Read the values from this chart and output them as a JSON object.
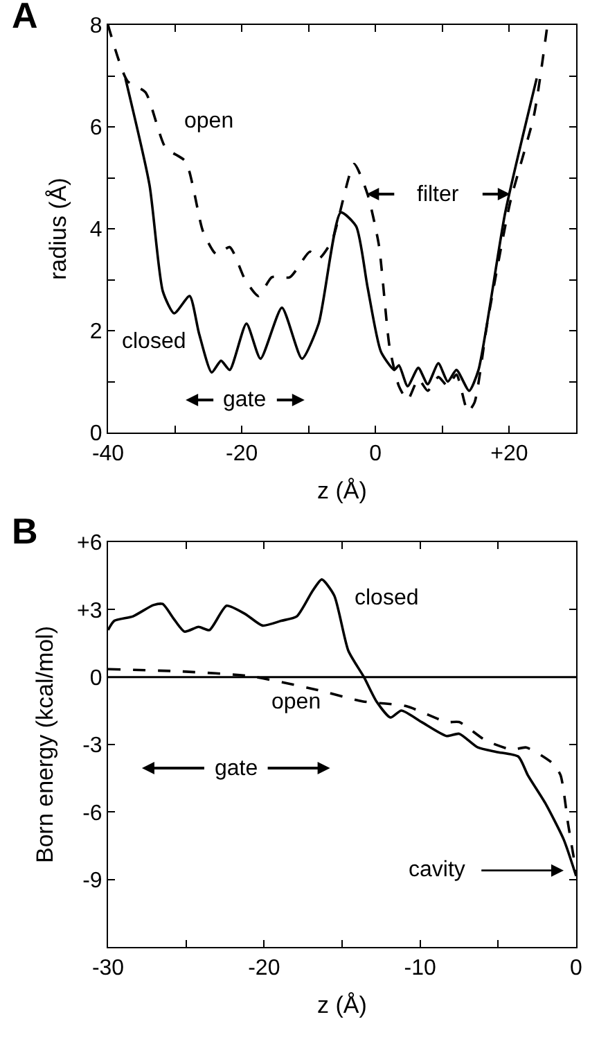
{
  "chart_data": [
    {
      "type": "line",
      "title": "A",
      "xlabel": "z (Å)",
      "ylabel": "radius (Å)",
      "xlim": [
        -40,
        30
      ],
      "xticks": [
        -40,
        {
          "value": -30,
          "label": null
        },
        -20,
        {
          "value": -10,
          "label": null
        },
        0,
        {
          "value": 10,
          "label": null
        },
        {
          "value": 20,
          "label": "+20"
        }
      ],
      "ylim": [
        0,
        8
      ],
      "yticks": [
        0,
        {
          "value": 1,
          "label": null
        },
        2,
        {
          "value": 3,
          "label": null
        },
        4,
        {
          "value": 5,
          "label": null
        },
        6,
        {
          "value": 7,
          "label": null
        },
        8
      ],
      "series": [
        {
          "name": "closed",
          "color": "#000000",
          "line_style": "solid",
          "x": [
            -37.4,
            -33.8,
            -31.8,
            -30.1,
            -27.8,
            -26.4,
            -24.5,
            -23.1,
            -21.8,
            -19.3,
            -17.2,
            -14.0,
            -11.0,
            -8.5,
            -5.2,
            -2.9,
            -1.2,
            0.8,
            2.8,
            3.5,
            4.8,
            6.4,
            7.8,
            9.4,
            10.8,
            12.1,
            14.0,
            15.4,
            19.4,
            24.1
          ],
          "values": [
            6.95,
            4.86,
            2.77,
            2.34,
            2.68,
            1.95,
            1.18,
            1.41,
            1.23,
            2.14,
            1.45,
            2.45,
            1.45,
            2.14,
            4.32,
            4.05,
            2.86,
            1.59,
            1.23,
            1.32,
            0.91,
            1.27,
            0.95,
            1.36,
            1.0,
            1.23,
            0.82,
            1.23,
            4.32,
            6.95
          ]
        },
        {
          "name": "open",
          "color": "#000000",
          "line_style": "dashed",
          "x": [
            -40,
            -37.1,
            -34.4,
            -31.4,
            -28.4,
            -25.8,
            -23.8,
            -21.8,
            -19.5,
            -17.5,
            -15.5,
            -12.8,
            -9.8,
            -8.5,
            -6.5,
            -3.2,
            -1.2,
            0.5,
            2.1,
            3.5,
            4.8,
            6.4,
            7.8,
            9.4,
            10.8,
            12.1,
            13.8,
            14.8,
            16.7,
            20.1,
            23.7,
            25.7
          ],
          "values": [
            8.0,
            6.9,
            6.68,
            5.59,
            5.32,
            3.95,
            3.5,
            3.64,
            3.0,
            2.68,
            3.05,
            3.05,
            3.55,
            3.41,
            3.77,
            5.27,
            4.68,
            3.68,
            1.68,
            0.91,
            0.64,
            1.05,
            0.82,
            1.09,
            0.91,
            1.14,
            0.41,
            0.59,
            2.14,
            4.5,
            6.23,
            8.0
          ]
        }
      ],
      "annotations": [
        "gate",
        "filter"
      ]
    },
    {
      "type": "line",
      "title": "B",
      "xlabel": "z (Å)",
      "ylabel": "Born energy (kcal/mol)",
      "xlim": [
        -30,
        0
      ],
      "xticks": [
        -30,
        {
          "value": -25,
          "label": null
        },
        -20,
        {
          "value": -15,
          "label": null
        },
        -10,
        {
          "value": -5,
          "label": null
        },
        0
      ],
      "ylim": [
        -12,
        6
      ],
      "yticks": [
        {
          "value": -12,
          "label": null
        },
        -9,
        -6,
        -3,
        0,
        {
          "value": 3,
          "label": "+3"
        },
        {
          "value": 6,
          "label": "+6"
        }
      ],
      "ref_lines": [
        {
          "axis": "y",
          "value": 0,
          "color": "#000000",
          "line_style": "solid"
        }
      ],
      "series": [
        {
          "name": "closed",
          "color": "#000000",
          "line_style": "solid",
          "x": [
            -30,
            -29.6,
            -28.4,
            -27.1,
            -26.5,
            -25.8,
            -25.1,
            -24.2,
            -23.5,
            -22.4,
            -21.2,
            -20.1,
            -18.9,
            -17.9,
            -16.9,
            -16.3,
            -15.5,
            -14.6,
            -13.6,
            -12.8,
            -11.9,
            -11.2,
            -9.9,
            -8.3,
            -7.5,
            -6.3,
            -5.1,
            -3.7,
            -3.1,
            -2.0,
            -0.8,
            0
          ],
          "values": [
            2.09,
            2.5,
            2.7,
            3.2,
            3.25,
            2.6,
            2.02,
            2.23,
            2.09,
            3.17,
            2.8,
            2.29,
            2.5,
            2.7,
            3.82,
            4.34,
            3.62,
            1.17,
            0,
            -1.08,
            -1.8,
            -1.49,
            -2.0,
            -2.62,
            -2.52,
            -3.13,
            -3.33,
            -3.54,
            -4.36,
            -5.58,
            -7.22,
            -8.85
          ]
        },
        {
          "name": "open",
          "color": "#000000",
          "line_style": "dashed",
          "x": [
            -30,
            -25.3,
            -20.9,
            -16.6,
            -13.7,
            -10.9,
            -8.3,
            -7.5,
            -5.8,
            -4.1,
            -3.2,
            -1.5,
            -1.0,
            -0.5,
            0
          ],
          "values": [
            0.35,
            0.25,
            0.04,
            -0.57,
            -1.08,
            -1.29,
            -2.0,
            -2.0,
            -2.82,
            -3.23,
            -3.13,
            -3.84,
            -4.36,
            -6.6,
            -8.65
          ]
        }
      ],
      "annotations": [
        "gate",
        "cavity"
      ]
    }
  ]
}
